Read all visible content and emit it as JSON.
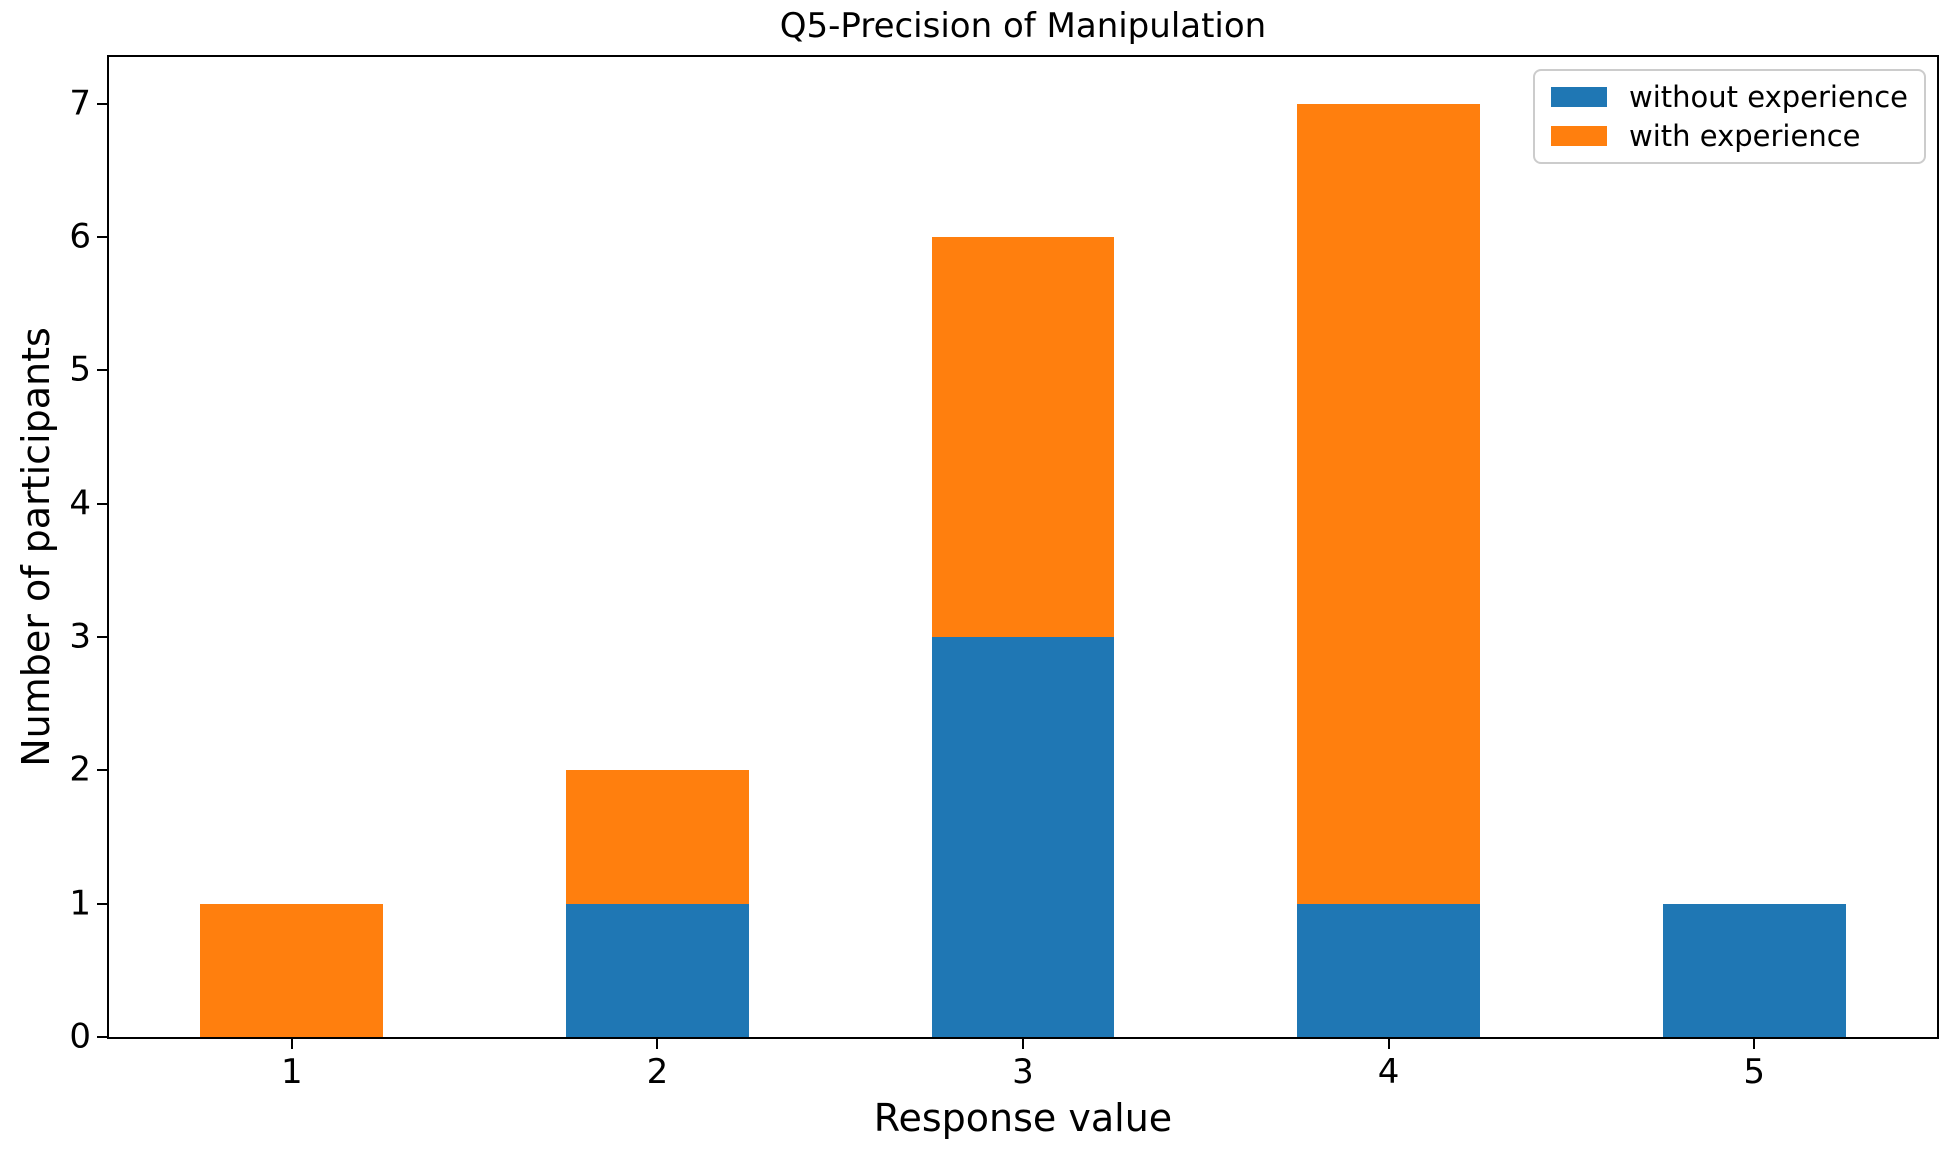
{
  "chart_data": {
    "type": "bar",
    "stacked": true,
    "title": "Q5-Precision of Manipulation",
    "xlabel": "Response value",
    "ylabel": "Number of participants",
    "categories": [
      "1",
      "2",
      "3",
      "4",
      "5"
    ],
    "series": [
      {
        "name": "without experience",
        "color": "#1f77b4",
        "values": [
          0,
          1,
          3,
          1,
          1
        ]
      },
      {
        "name": "with experience",
        "color": "#ff7f0e",
        "values": [
          1,
          1,
          3,
          6,
          0
        ]
      }
    ],
    "yticks": [
      0,
      1,
      2,
      3,
      4,
      5,
      6,
      7
    ],
    "ylim": [
      0,
      7.35
    ],
    "bar_width_fraction": 0.5,
    "grid": false,
    "legend_position": "upper right",
    "axis_color": "#000000",
    "legend_border_color": "#cccccc",
    "background_color": "#ffffff"
  }
}
